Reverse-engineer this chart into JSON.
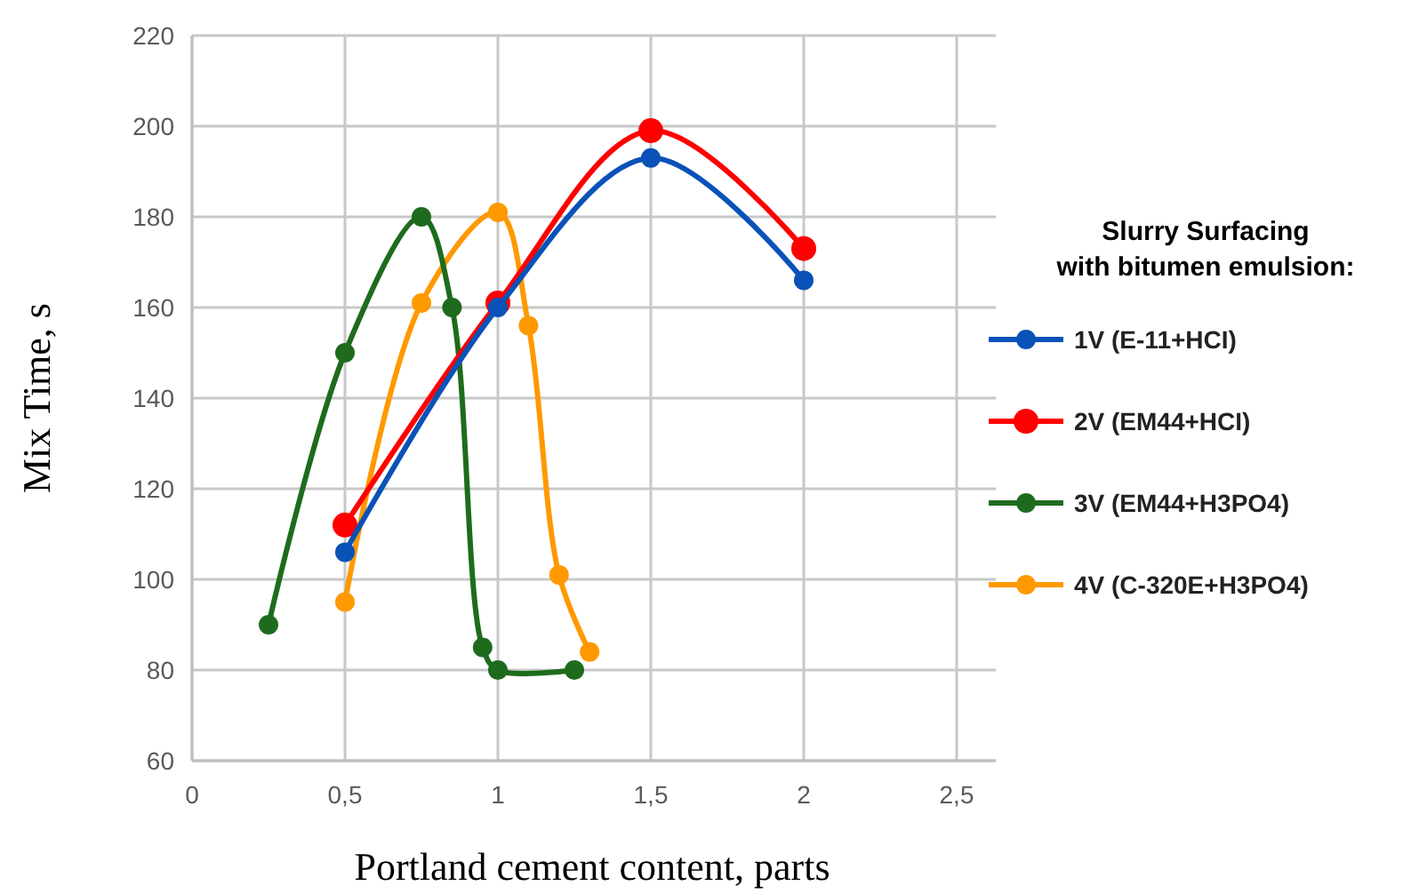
{
  "chart_data": {
    "type": "line",
    "xlabel": "Portland cement content, parts",
    "ylabel": "Mix Time, s",
    "legend_title": "Slurry Surfacing\nwith bitumen emulsion:",
    "xlim": [
      0,
      2.5
    ],
    "xticks": [
      {
        "value": 0,
        "label": "0"
      },
      {
        "value": 0.5,
        "label": "0,5"
      },
      {
        "value": 1,
        "label": "1"
      },
      {
        "value": 1.5,
        "label": "1,5"
      },
      {
        "value": 2,
        "label": "2"
      },
      {
        "value": 2.5,
        "label": "2,5"
      }
    ],
    "ylim": [
      60,
      220
    ],
    "yticks": [
      60,
      80,
      100,
      120,
      140,
      160,
      180,
      200,
      220
    ],
    "grid": true,
    "legend": "right",
    "marker": "circle",
    "line_style": "solid",
    "series": [
      {
        "name": "1V (E-11+HCI)",
        "color": "#0a52b8",
        "x": [
          0.5,
          1,
          1.5,
          2
        ],
        "values": [
          106,
          160,
          193,
          166
        ]
      },
      {
        "name": "2V (EM44+HCI)",
        "color": "#ff0000",
        "x": [
          0.5,
          1,
          1.5,
          2
        ],
        "values": [
          112,
          161,
          199,
          173
        ]
      },
      {
        "name": "3V (EM44+H3PO4)",
        "color": "#1e6b1e",
        "x": [
          0.25,
          0.5,
          0.75,
          0.85,
          0.95,
          1,
          1.25
        ],
        "values": [
          90,
          150,
          180,
          160,
          85,
          80,
          80
        ]
      },
      {
        "name": "4V (C-320E+H3PO4)",
        "color": "#ff9900",
        "x": [
          0.5,
          0.75,
          1,
          1.1,
          1.2,
          1.3
        ],
        "values": [
          95,
          161,
          181,
          156,
          101,
          84
        ]
      }
    ]
  }
}
